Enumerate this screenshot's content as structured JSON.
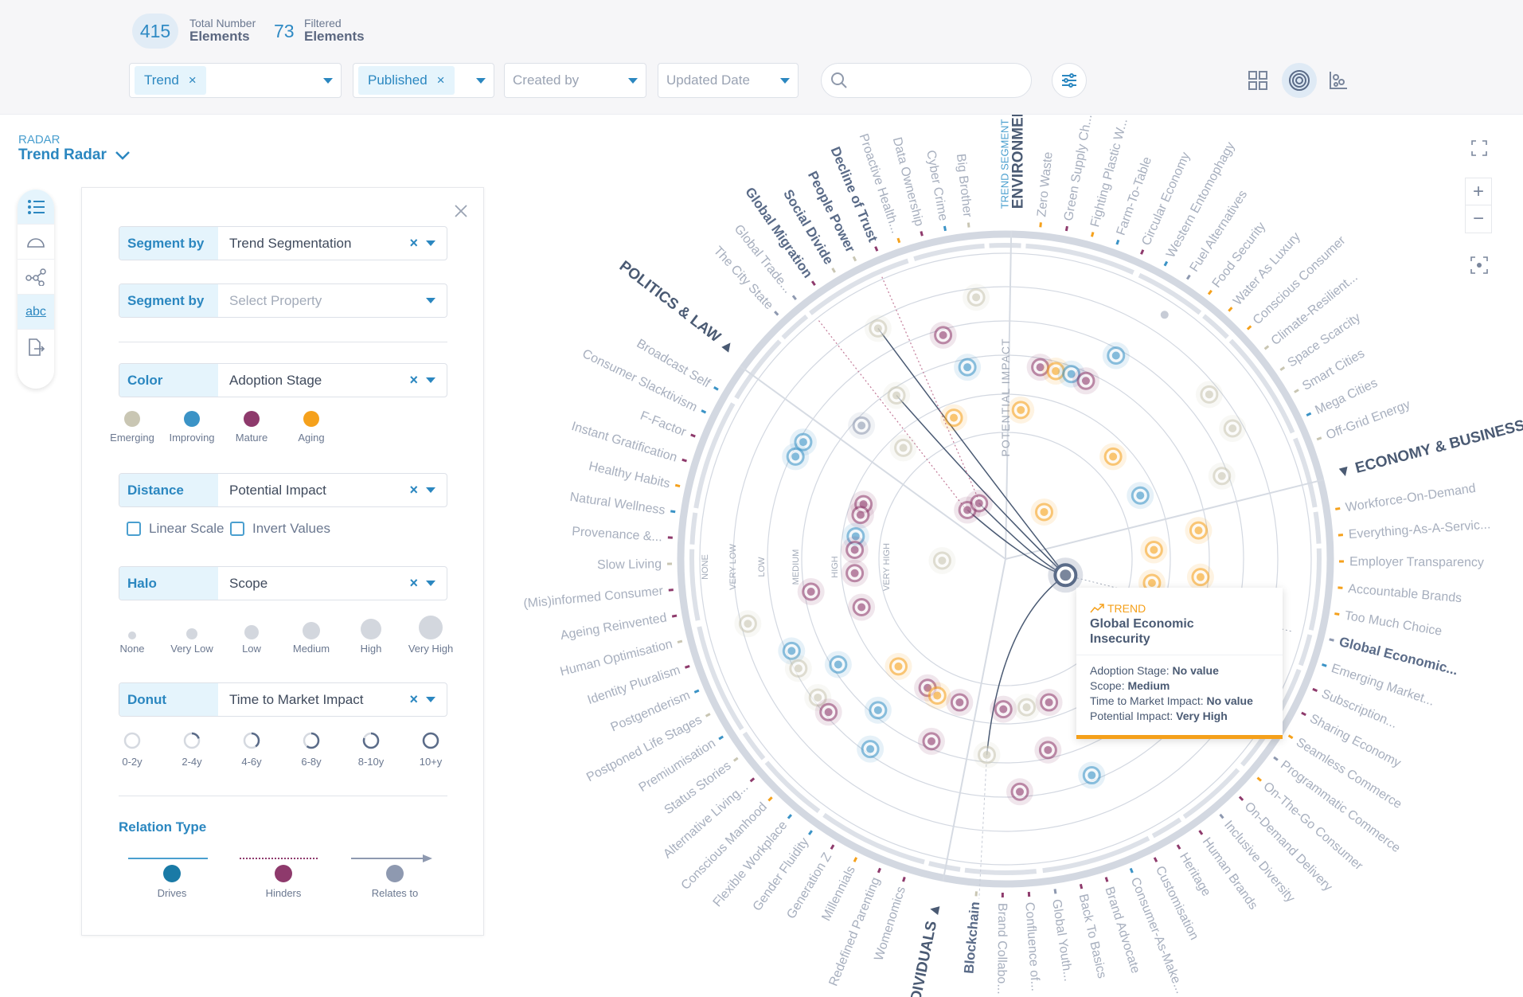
{
  "header": {
    "total_count": "415",
    "total_label_small": "Total Number",
    "total_label": "Elements",
    "filtered_count": "73",
    "filtered_label_small": "Filtered",
    "filtered_label": "Elements",
    "filters": [
      {
        "chip": "Trend",
        "remove": "×"
      },
      {
        "chip": "Published",
        "remove": "×"
      },
      {
        "placeholder": "Created by"
      },
      {
        "placeholder": "Updated Date"
      }
    ],
    "search_placeholder": "",
    "views": [
      "grid-view-icon",
      "radar-view-icon",
      "scatter-view-icon"
    ],
    "active_view": "radar-view-icon"
  },
  "radar": {
    "kicker": "RADAR",
    "title": "Trend Radar"
  },
  "rail": [
    "list-icon",
    "arc-icon",
    "network-icon",
    "abc-label-icon",
    "export-icon"
  ],
  "panel": {
    "rows": [
      {
        "label": "Segment by",
        "value": "Trend Segmentation",
        "clear": "×"
      },
      {
        "label": "Segment by",
        "value": "",
        "placeholder": "Select Property"
      },
      {
        "label": "Color",
        "value": "Adoption Stage",
        "clear": "×"
      },
      {
        "label": "Distance",
        "value": "Potential Impact",
        "clear": "×"
      },
      {
        "label": "Halo",
        "value": "Scope",
        "clear": "×"
      },
      {
        "label": "Donut",
        "value": "Time to Market Impact",
        "clear": "×"
      }
    ],
    "color_legend": [
      {
        "label": "Emerging",
        "color": "#c9c6b3"
      },
      {
        "label": "Improving",
        "color": "#3b93c6"
      },
      {
        "label": "Mature",
        "color": "#8e3a6c"
      },
      {
        "label": "Aging",
        "color": "#f5a11c"
      }
    ],
    "linear_scale": {
      "label": "Linear Scale",
      "checked": false
    },
    "invert_values": {
      "label": "Invert Values",
      "checked": false
    },
    "halo_legend": [
      "None",
      "Very Low",
      "Low",
      "Medium",
      "High",
      "Very High"
    ],
    "donut_legend": [
      "0-2y",
      "2-4y",
      "4-6y",
      "6-8y",
      "8-10y",
      "10+y"
    ],
    "relation_title": "Relation Type",
    "relations": [
      {
        "label": "Drives",
        "color": "#1a7aa6"
      },
      {
        "label": "Hinders",
        "color": "#8e3a6c"
      },
      {
        "label": "Relates to",
        "color": "#8e99b0"
      }
    ]
  },
  "chart": {
    "segment_kicker": "TREND SEGMENT",
    "axis_label": "POTENTIAL IMPACT",
    "rings": [
      "NONE",
      "VERY LOW",
      "LOW",
      "MEDIUM",
      "HIGH",
      "VERY HIGH"
    ],
    "stage_colors": {
      "e": "#c9c6b3",
      "i": "#3b93c6",
      "m": "#8e3a6c",
      "a": "#f5a11c",
      "g": "#8e99b0"
    },
    "segments": [
      {
        "name": "ENVIRONMENT",
        "trends": [
          [
            "Zero Waste",
            "a"
          ],
          [
            "Green Supply Ch...",
            "m"
          ],
          [
            "Fighting Plastic W...",
            "a"
          ],
          [
            "Farm-To-Table",
            "i"
          ],
          [
            "Circular Economy",
            "m"
          ],
          [
            "Western Entomophagy",
            "i"
          ],
          [
            "Fuel Alternatives",
            "g"
          ],
          [
            "Food Security",
            "a"
          ],
          [
            "Water As Luxury",
            "a"
          ],
          [
            "Conscious Consumer",
            "a"
          ],
          [
            "Climate-Resilient...",
            "e"
          ],
          [
            "Space Scarcity",
            "e"
          ],
          [
            "Smart Cities",
            "e"
          ],
          [
            "Mega Cities",
            "i"
          ],
          [
            "Off-Grid Energy",
            "e"
          ]
        ]
      },
      {
        "name": "ECONOMY & BUSINESS",
        "trends": [
          [
            "Workforce-On-Demand",
            "a"
          ],
          [
            "Everything-As-A-Servic...",
            "a"
          ],
          [
            "Employer Transparency",
            "a"
          ],
          [
            "Accountable Brands",
            "a"
          ],
          [
            "Too Much Choice",
            "a"
          ],
          [
            "Global Economic...",
            "g",
            true
          ],
          [
            "Emerging Market...",
            "i"
          ],
          [
            "Subscription...",
            "m"
          ],
          [
            "Sharing Economy",
            "m"
          ],
          [
            "Seamless Commerce",
            "a"
          ],
          [
            "Programmatic Commerce",
            "g"
          ],
          [
            "On-The-Go Consumer",
            "a"
          ],
          [
            "On-Demand Delivery",
            "m"
          ],
          [
            "Inclusive Diversity",
            "g"
          ],
          [
            "Human Brands",
            "m"
          ],
          [
            "Heritage",
            "m"
          ],
          [
            "Customisation",
            "m"
          ],
          [
            "Consumer-As-Make...",
            "i"
          ],
          [
            "Brand Advocate",
            "m"
          ],
          [
            "Back To Basics",
            "m"
          ],
          [
            "Global Youth...",
            "g"
          ],
          [
            "Confluence of...",
            "m"
          ],
          [
            "Brand Collabo...",
            "m"
          ],
          [
            "Blockchain",
            "e",
            true
          ]
        ]
      },
      {
        "name": "INDIVIDUALS",
        "trends": [
          [
            "Womenomics",
            "m"
          ],
          [
            "Redefined Parenting",
            "m"
          ],
          [
            "Millennials",
            "a"
          ],
          [
            "Generation Z",
            "m"
          ],
          [
            "Gender Fluidity",
            "i"
          ],
          [
            "Flexible Workplace",
            "i"
          ],
          [
            "Conscious Manhood",
            "a"
          ],
          [
            "Alternative Living...",
            "m"
          ],
          [
            "Status Stories",
            "e"
          ],
          [
            "Premiumisation",
            "i"
          ],
          [
            "Postponed Life Stages",
            "e"
          ],
          [
            "Postgenderism",
            "i"
          ],
          [
            "Identity Pluralism",
            "m"
          ],
          [
            "Human Optimisation",
            "e"
          ],
          [
            "Ageing Reinvented",
            "m"
          ],
          [
            "(Mis)informed Consumer",
            "m"
          ],
          [
            "Slow Living",
            "e"
          ],
          [
            "Provenance &...",
            "m"
          ],
          [
            "Natural Wellness",
            "i"
          ],
          [
            "Healthy Habits",
            "a"
          ],
          [
            "Instant Gratification",
            "m"
          ],
          [
            "F-Factor",
            "m"
          ],
          [
            "Consumer Slacktivism",
            "i"
          ],
          [
            "Broadcast Self",
            "i"
          ]
        ]
      },
      {
        "name": "POLITICS & LAW",
        "trends": [
          [
            "The City State",
            "g"
          ],
          [
            "Global Trade...",
            "g"
          ],
          [
            "Global Migration",
            "m",
            true
          ],
          [
            "Social Divide",
            "e",
            true
          ],
          [
            "People Power",
            "e",
            true
          ],
          [
            "Decline of Trust",
            "m",
            true
          ],
          [
            "Proactive Health...",
            "a"
          ],
          [
            "Data Ownership",
            "m"
          ],
          [
            "Cyber Crime",
            "i"
          ],
          [
            "Big Brother",
            "e"
          ]
        ]
      }
    ],
    "tooltip": {
      "type": "TREND",
      "title_line1": "Global Economic",
      "title_line2": "Insecurity",
      "fields": [
        {
          "k": "Adoption Stage: ",
          "v": "No value"
        },
        {
          "k": "Scope: ",
          "v": "Medium"
        },
        {
          "k": "Time to Market Impact: ",
          "v": "No value"
        },
        {
          "k": "Potential Impact: ",
          "v": "Very High"
        }
      ]
    }
  }
}
